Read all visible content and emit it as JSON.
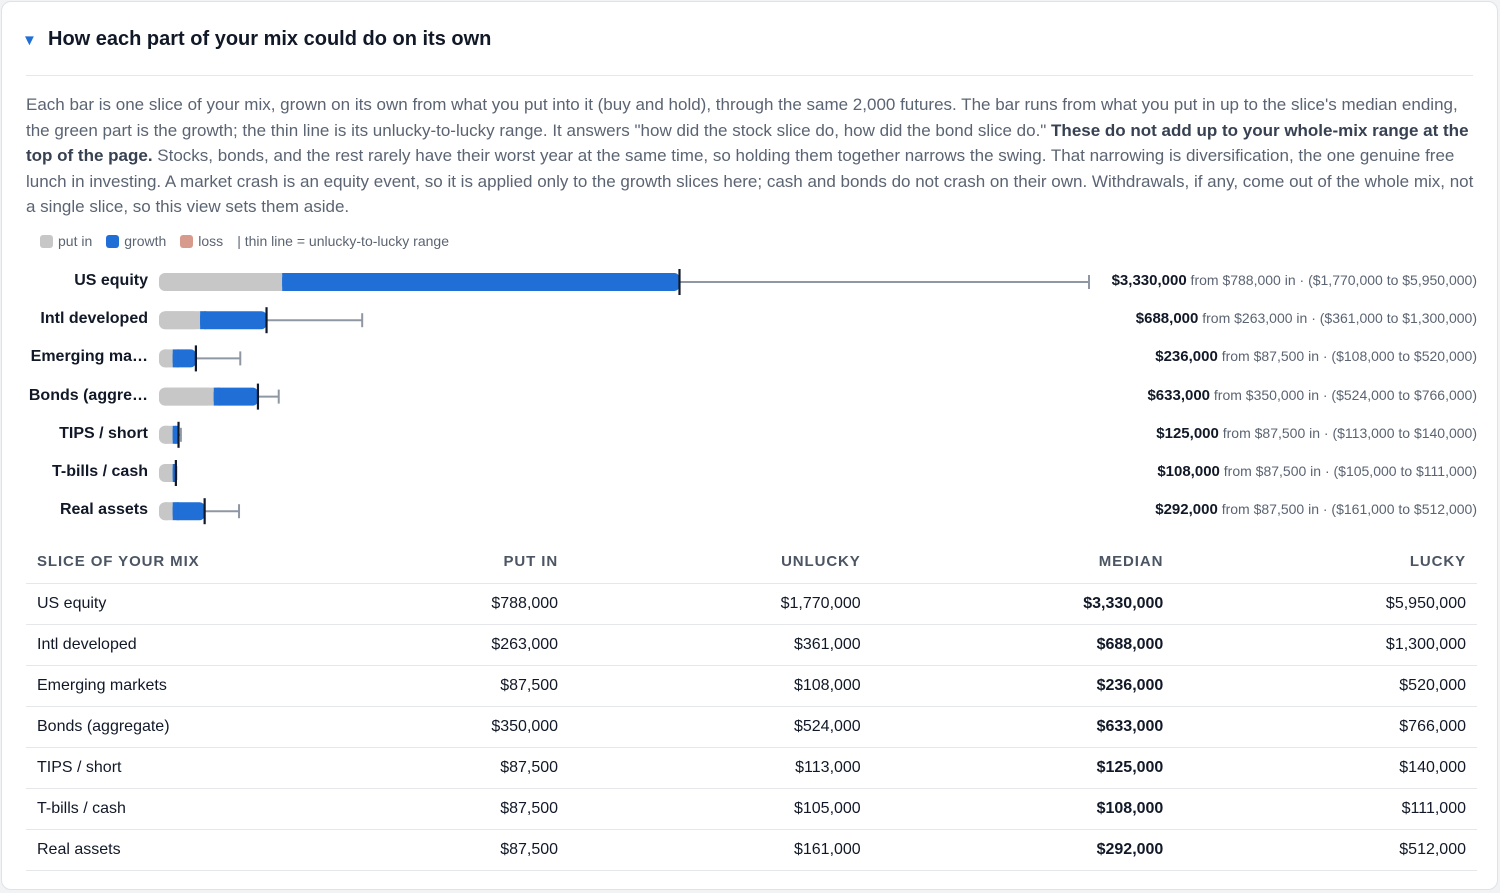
{
  "section": {
    "caret": "▼",
    "title": "How each part of your mix could do on its own"
  },
  "description": {
    "text1": "Each bar is one slice of your mix, grown on its own from what you put into it (buy and hold), through the same 2,000 futures. The bar runs from what you put in up to the slice's median ending, the green part is the growth; the thin line is its unlucky-to-lucky range. It answers \"how did the stock slice do, how did the bond slice do.\" ",
    "bold": "These do not add up to your whole-mix range at the top of the page.",
    "text2": " Stocks, bonds, and the rest rarely have their worst year at the same time, so holding them together narrows the swing. That narrowing is diversification, the one genuine free lunch in investing. A market crash is an equity event, so it is applied only to the growth slices here; cash and bonds do not crash on their own. Withdrawals, if any, come out of the whole mix, not a single slice, so this view sets them aside."
  },
  "legend": {
    "put_in": "put in",
    "growth": "growth",
    "loss": "loss",
    "range": "| thin line = unlucky-to-lucky range"
  },
  "colors": {
    "put_in": "#c7c7c7",
    "growth": "#1f6fd6",
    "loss": "#d99a8e",
    "range": "#8f97a3",
    "median_tick": "#111827"
  },
  "chart_data": {
    "type": "bar",
    "rows": [
      {
        "label": "US equity",
        "put_in": 788000,
        "unlucky": 1770000,
        "median": 3330000,
        "lucky": 5950000,
        "median_text": "$3,330,000",
        "detail_text": "from $788,000 in · ($1,770,000 to $5,950,000)"
      },
      {
        "label": "Intl developed",
        "put_in": 263000,
        "unlucky": 361000,
        "median": 688000,
        "lucky": 1300000,
        "median_text": "$688,000",
        "detail_text": "from $263,000 in · ($361,000 to $1,300,000)"
      },
      {
        "label": "Emerging ma…",
        "put_in": 87500,
        "unlucky": 108000,
        "median": 236000,
        "lucky": 520000,
        "median_text": "$236,000",
        "detail_text": "from $87,500 in · ($108,000 to $520,000)"
      },
      {
        "label": "Bonds (aggre…",
        "put_in": 350000,
        "unlucky": 524000,
        "median": 633000,
        "lucky": 766000,
        "median_text": "$633,000",
        "detail_text": "from $350,000 in · ($524,000 to $766,000)"
      },
      {
        "label": "TIPS / short",
        "put_in": 87500,
        "unlucky": 113000,
        "median": 125000,
        "lucky": 140000,
        "median_text": "$125,000",
        "detail_text": "from $87,500 in · ($113,000 to $140,000)"
      },
      {
        "label": "T-bills / cash",
        "put_in": 87500,
        "unlucky": 105000,
        "median": 108000,
        "lucky": 111000,
        "median_text": "$108,000",
        "detail_text": "from $87,500 in · ($105,000 to $111,000)"
      },
      {
        "label": "Real assets",
        "put_in": 87500,
        "unlucky": 161000,
        "median": 292000,
        "lucky": 512000,
        "median_text": "$292,000",
        "detail_text": "from $87,500 in · ($161,000 to $512,000)"
      }
    ],
    "xlim": [
      0,
      5950000
    ]
  },
  "table": {
    "headers": [
      "Slice of your mix",
      "Put in",
      "Unlucky",
      "Median",
      "Lucky"
    ],
    "rows": [
      [
        "US equity",
        "$788,000",
        "$1,770,000",
        "$3,330,000",
        "$5,950,000"
      ],
      [
        "Intl developed",
        "$263,000",
        "$361,000",
        "$688,000",
        "$1,300,000"
      ],
      [
        "Emerging markets",
        "$87,500",
        "$108,000",
        "$236,000",
        "$520,000"
      ],
      [
        "Bonds (aggregate)",
        "$350,000",
        "$524,000",
        "$633,000",
        "$766,000"
      ],
      [
        "TIPS / short",
        "$87,500",
        "$113,000",
        "$125,000",
        "$140,000"
      ],
      [
        "T-bills / cash",
        "$87,500",
        "$105,000",
        "$108,000",
        "$111,000"
      ],
      [
        "Real assets",
        "$87,500",
        "$161,000",
        "$292,000",
        "$512,000"
      ]
    ]
  }
}
